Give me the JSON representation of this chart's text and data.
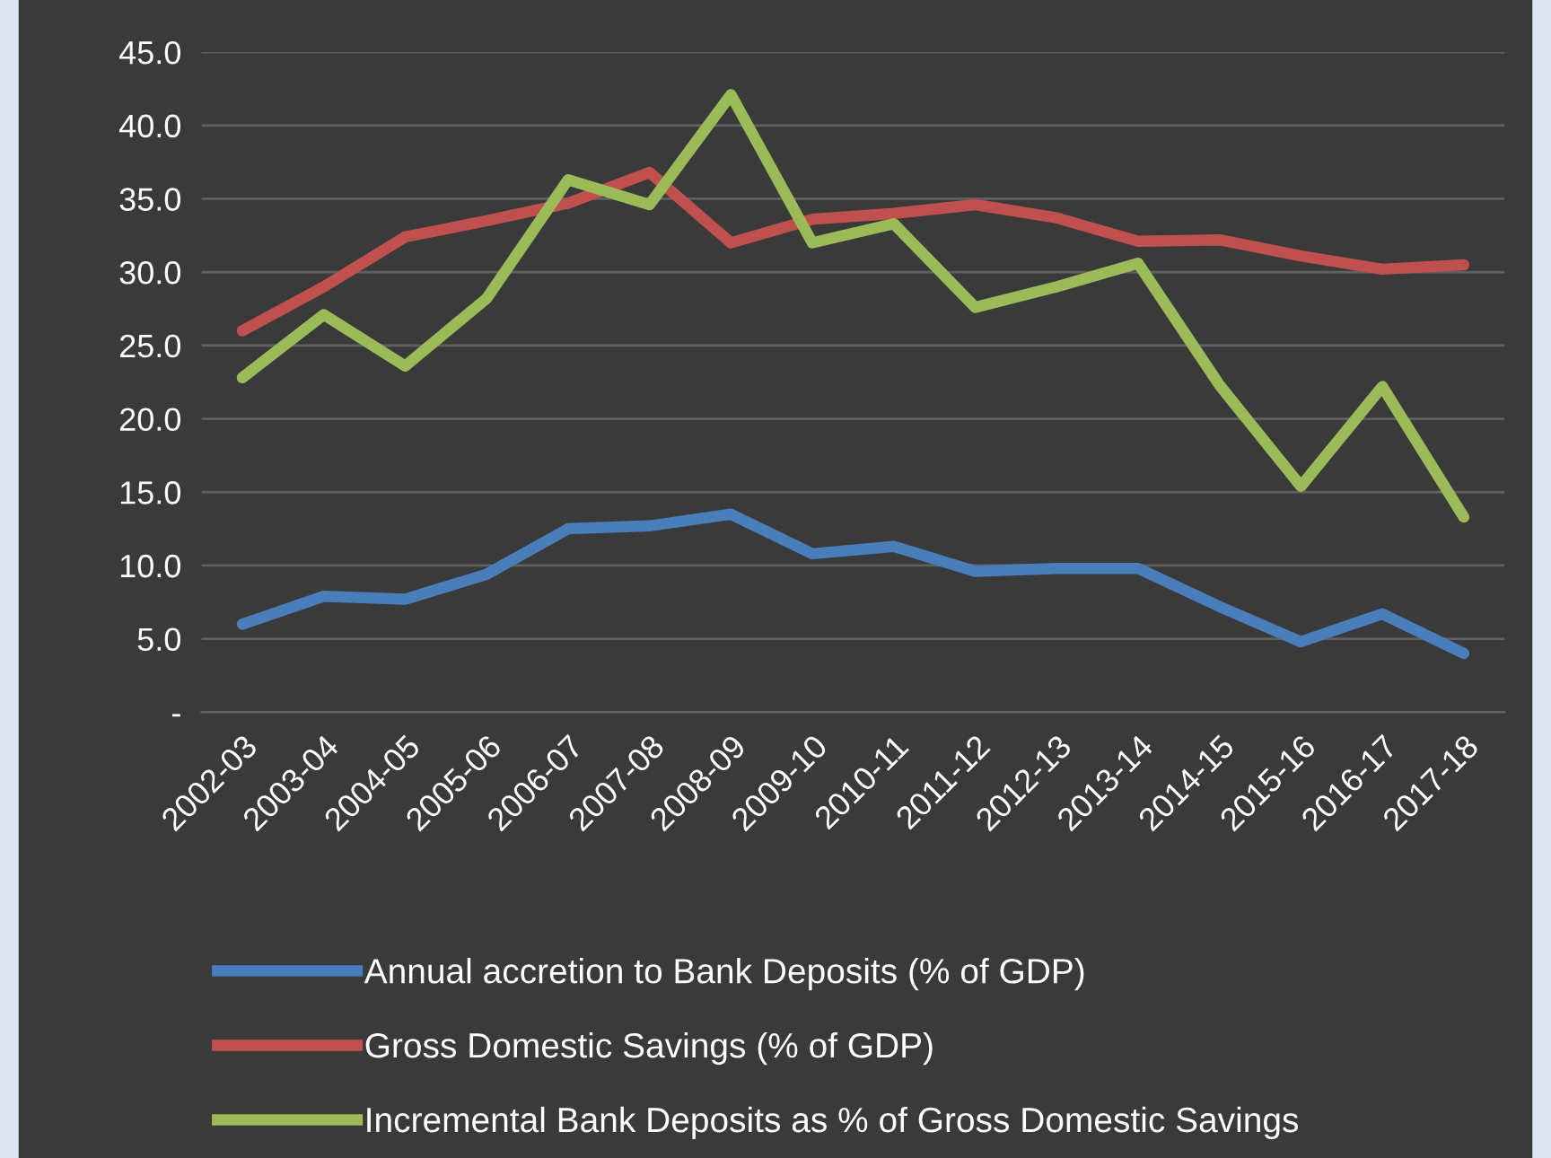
{
  "chart_data": {
    "type": "line",
    "categories": [
      "2002-03",
      "2003-04",
      "2004-05",
      "2005-06",
      "2006-07",
      "2007-08",
      "2008-09",
      "2009-10",
      "2010-11",
      "2011-12",
      "2012-13",
      "2013-14",
      "2014-15",
      "2015-16",
      "2016-17",
      "2017-18"
    ],
    "series": [
      {
        "name": "Annual accretion to Bank Deposits (% of GDP)",
        "color": "#4a7ebb",
        "values": [
          6.0,
          7.9,
          7.7,
          9.4,
          12.5,
          12.7,
          13.5,
          10.8,
          11.3,
          9.6,
          9.8,
          9.8,
          7.2,
          4.8,
          6.7,
          4.0
        ]
      },
      {
        "name": "Gross Domestic Savings (% of GDP)",
        "color": "#c0504d",
        "values": [
          26.0,
          29.0,
          32.4,
          33.5,
          34.7,
          36.8,
          32.0,
          33.6,
          34.0,
          34.6,
          33.7,
          32.1,
          32.2,
          31.1,
          30.2,
          30.5
        ]
      },
      {
        "name": "Incremental Bank Deposits as % of Gross Domestic Savings",
        "color": "#9bbb59",
        "values": [
          22.8,
          27.1,
          23.6,
          28.2,
          36.3,
          34.6,
          42.1,
          32.0,
          33.3,
          27.6,
          29.0,
          30.6,
          22.3,
          15.4,
          22.2,
          13.3
        ]
      }
    ],
    "ylim": [
      0,
      45
    ],
    "yticks": [
      {
        "value": 0,
        "label": "-"
      },
      {
        "value": 5,
        "label": "5.0"
      },
      {
        "value": 10,
        "label": "10.0"
      },
      {
        "value": 15,
        "label": "15.0"
      },
      {
        "value": 20,
        "label": "20.0"
      },
      {
        "value": 25,
        "label": "25.0"
      },
      {
        "value": 30,
        "label": "30.0"
      },
      {
        "value": 35,
        "label": "35.0"
      },
      {
        "value": 40,
        "label": "40.0"
      },
      {
        "value": 45,
        "label": "45.0"
      }
    ],
    "grid": "y",
    "legend": "bottom",
    "marker": "none",
    "line_style": "solid"
  }
}
